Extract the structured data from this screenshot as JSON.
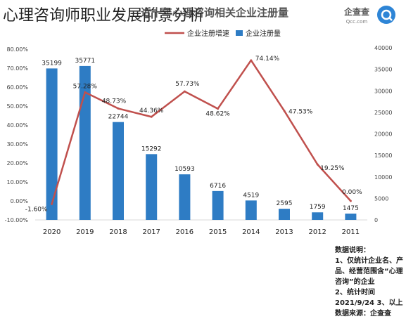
{
  "overlay_title": "心理咨询师职业发展前景分析",
  "header": {
    "chart_title": "近十年心理咨询相关企业注册量",
    "watermark_name": "企查查",
    "watermark_url": "Qcc.com"
  },
  "legend": {
    "line_label": "企业注册增速",
    "bar_label": "企业注册量"
  },
  "notes": {
    "title": "数据说明：",
    "line1": "1、仅统计企业名、产品、经营范围含“心理咨询”的企业",
    "line2": "2、统计时间2021/9/24",
    "line3": "3、以上数据来源：企查查"
  },
  "chart_data": {
    "type": "bar",
    "title": "近十年心理咨询相关企业注册量",
    "categories": [
      "2020",
      "2019",
      "2018",
      "2017",
      "2016",
      "2015",
      "2014",
      "2013",
      "2012",
      "2011"
    ],
    "series": [
      {
        "name": "企业注册量",
        "type": "bar",
        "axis": "right",
        "values": [
          35199,
          35771,
          22744,
          15292,
          10593,
          6716,
          4519,
          2595,
          1759,
          1475
        ],
        "labels": [
          "35199",
          "35771",
          "22744",
          "15292",
          "10593",
          "6716",
          "4519",
          "2595",
          "1759",
          "1475"
        ]
      },
      {
        "name": "企业注册增速",
        "type": "line",
        "axis": "left",
        "values": [
          -1.6,
          57.28,
          48.73,
          44.36,
          57.73,
          48.62,
          74.14,
          47.53,
          19.25,
          0.0
        ],
        "labels": [
          "-1.60%",
          "57.28%",
          "48.73%",
          "44.36%",
          "57.73%",
          "48.62%",
          "74.14%",
          "47.53%",
          "19.25%",
          "0.00%"
        ]
      }
    ],
    "y_left": {
      "ticks": [
        "80.00%",
        "70.00%",
        "60.00%",
        "50.00%",
        "40.00%",
        "30.00%",
        "20.00%",
        "10.00%",
        "0.00%",
        "-10.00%"
      ],
      "range": [
        -10,
        80
      ],
      "unit": "%"
    },
    "y_right": {
      "ticks": [
        "40000",
        "35000",
        "30000",
        "25000",
        "20000",
        "15000",
        "10000",
        "5000",
        "0"
      ],
      "range": [
        0,
        40000
      ]
    },
    "colors": {
      "bar": "#2e7cc4",
      "line": "#c0504d"
    },
    "legend_position": "top-center",
    "grid": false
  }
}
